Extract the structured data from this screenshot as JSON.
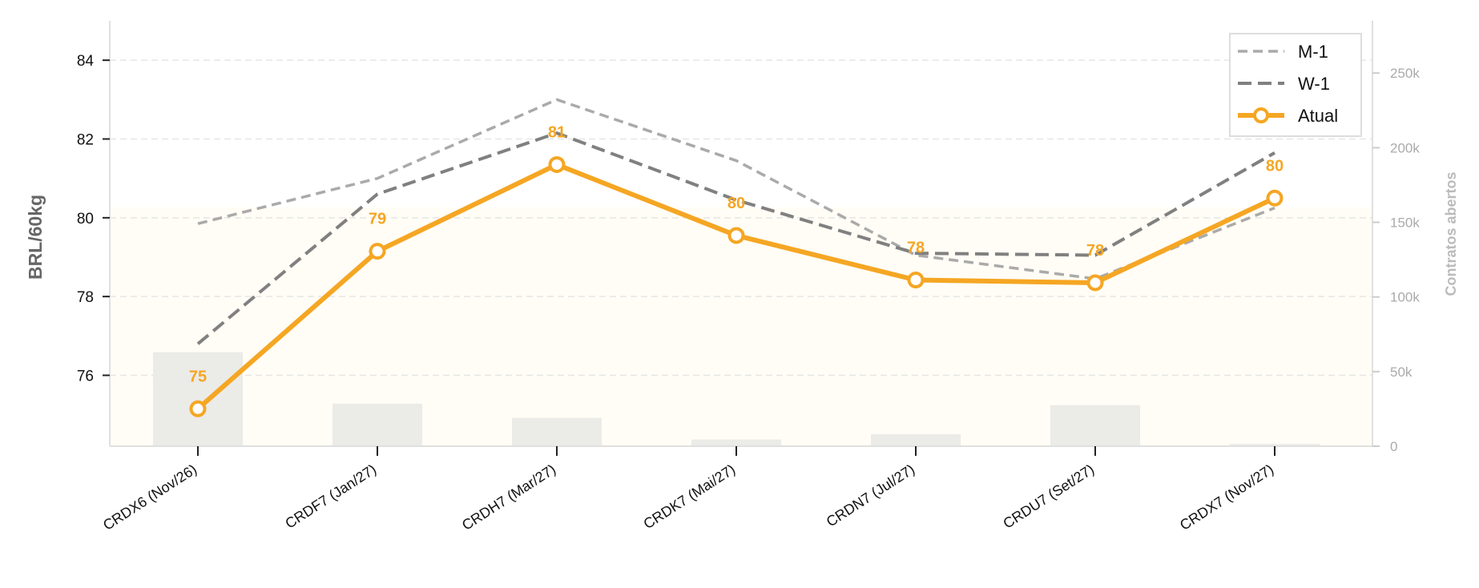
{
  "chart_data": {
    "type": "line",
    "ylabel": "BRL/60kg",
    "y2label": "Contratos abertos",
    "ylim": [
      74.2,
      85.0
    ],
    "y2lim": [
      0,
      285000
    ],
    "yticks": [
      76,
      78,
      80,
      82,
      84
    ],
    "y2ticks": [
      0,
      50000,
      100000,
      150000,
      200000,
      250000
    ],
    "y2ticklabels": [
      "0",
      "50k",
      "100k",
      "150k",
      "200k",
      "250k"
    ],
    "grid": true,
    "legend_position": "upper-right",
    "categories": [
      "CRDX6 (Nov/26)",
      "CRDF7 (Jan/27)",
      "CRDH7 (Mar/27)",
      "CRDK7 (Mai/27)",
      "CRDN7 (Jul/27)",
      "CRDU7 (Set/27)",
      "CRDX7 (Nov/27)"
    ],
    "series": [
      {
        "name": "M-1",
        "values": [
          79.85,
          81.0,
          83.0,
          81.45,
          79.05,
          78.45,
          80.25
        ],
        "color": "#aaaaaa",
        "style": "dashed-thin"
      },
      {
        "name": "W-1",
        "values": [
          76.8,
          80.6,
          82.15,
          80.45,
          79.1,
          79.05,
          81.65
        ],
        "color": "#808080",
        "style": "dashed"
      },
      {
        "name": "Atual",
        "values": [
          75.15,
          79.15,
          81.35,
          79.55,
          78.42,
          78.35,
          80.5
        ],
        "color": "#f5a623",
        "style": "solid-markers"
      }
    ],
    "data_labels": [
      "75",
      "79",
      "81",
      "80",
      "78",
      "78",
      "80"
    ],
    "bars": {
      "name": "Contratos abertos",
      "values": [
        63000,
        28500,
        19000,
        4500,
        8000,
        27500,
        1500
      ],
      "color": "#ebebe8"
    }
  }
}
